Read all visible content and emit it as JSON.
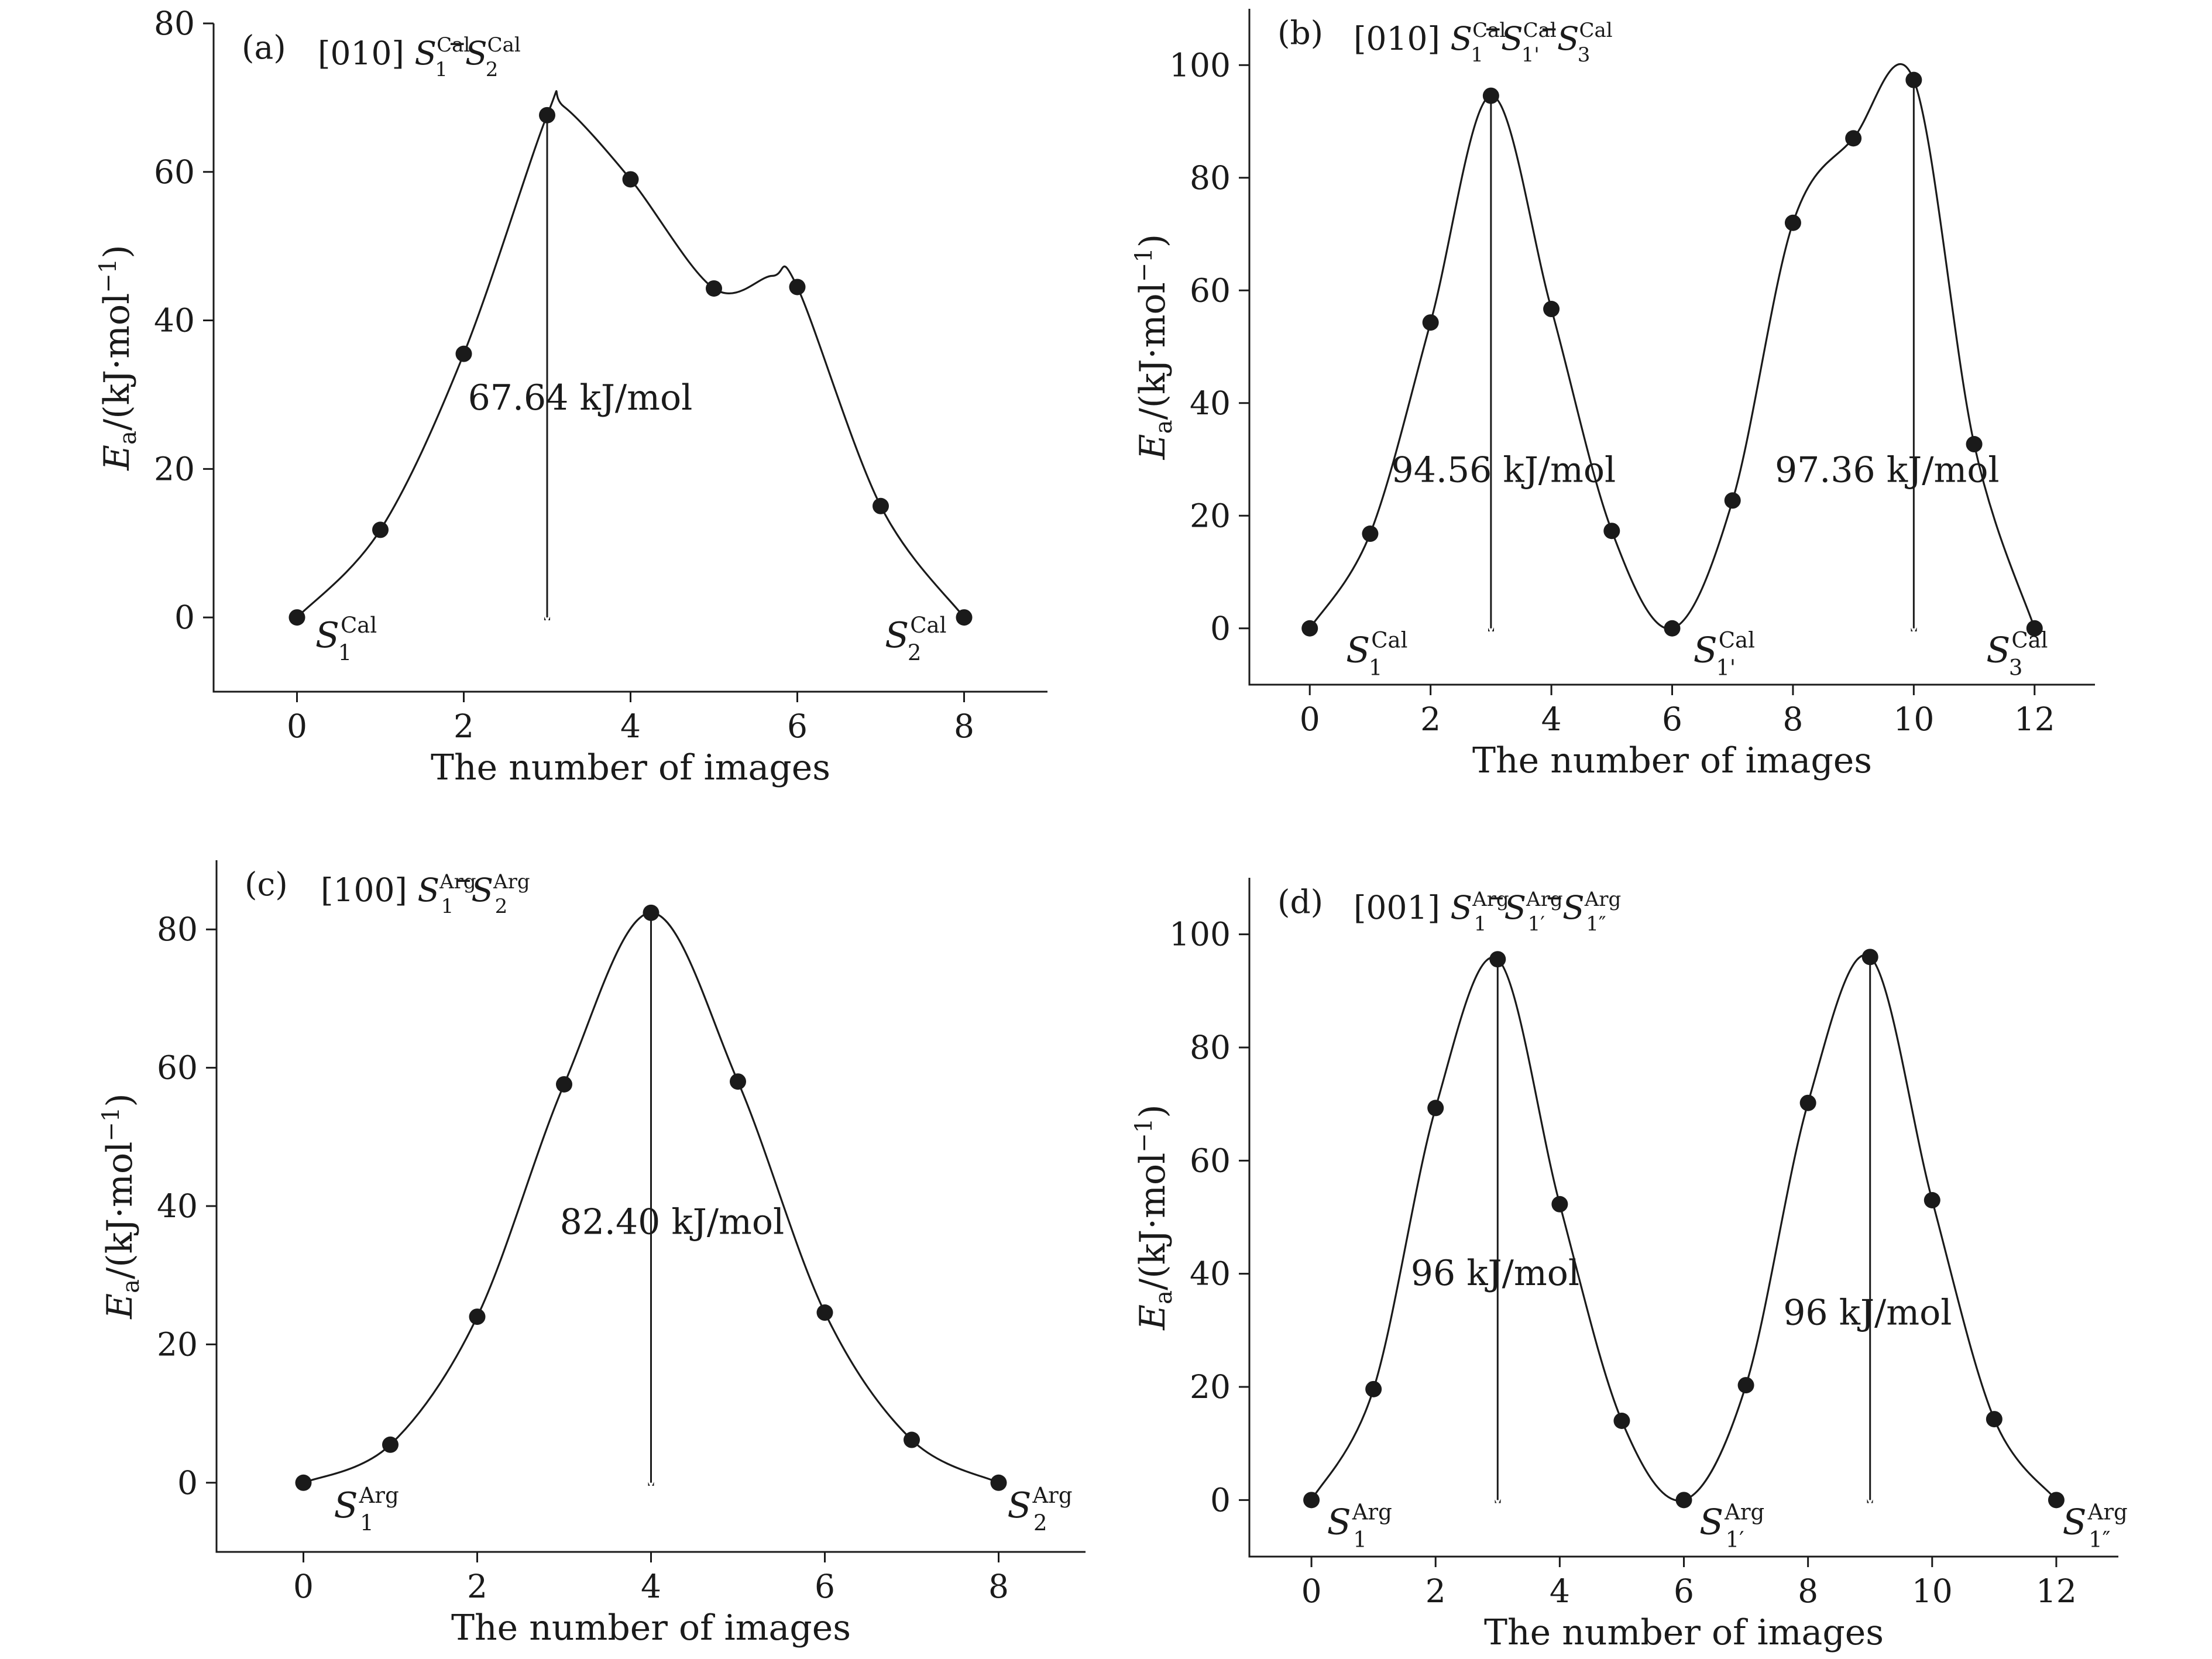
{
  "figure": {
    "panels": [
      {
        "id": "a",
        "panel_label": "(a)",
        "direction": "[010]",
        "path_label": [
          {
            "main": "S",
            "sup": "Cal",
            "sub": "1"
          },
          {
            "main": "S",
            "sup": "Cal",
            "sub": "2"
          }
        ],
        "xlabel": "The number of images",
        "ylabel": "E",
        "ylabel_sub": "a",
        "ylabel_unit": "/(kJ·mol",
        "ylabel_exp": "−1",
        "ylabel_close": ")"
      },
      {
        "id": "b",
        "panel_label": "(b)",
        "direction": "[010]",
        "path_label": [
          {
            "main": "S",
            "sup": "Cal",
            "sub": "1"
          },
          {
            "main": "S",
            "sup": "Cal",
            "sub": "1'"
          },
          {
            "main": "S",
            "sup": "Cal",
            "sub": "3"
          }
        ],
        "xlabel": "The number of images",
        "ylabel": "E",
        "ylabel_sub": "a",
        "ylabel_unit": "/(kJ·mol",
        "ylabel_exp": "−1",
        "ylabel_close": ")"
      },
      {
        "id": "c",
        "panel_label": "(c)",
        "direction": "[100]",
        "path_label": [
          {
            "main": "S",
            "sup": "Arg",
            "sub": "1"
          },
          {
            "main": "S",
            "sup": "Arg",
            "sub": "2"
          }
        ],
        "xlabel": "The number of images",
        "ylabel": "E",
        "ylabel_sub": "a",
        "ylabel_unit": "/(kJ·mol",
        "ylabel_exp": "−1",
        "ylabel_close": ")"
      },
      {
        "id": "d",
        "panel_label": "(d)",
        "direction": "[001]",
        "path_label": [
          {
            "main": "S",
            "sup": "Arg",
            "sub": "1"
          },
          {
            "main": "S",
            "sup": "Arg",
            "sub": "1′"
          },
          {
            "main": "S",
            "sup": "Arg",
            "sub": "1″"
          }
        ],
        "xlabel": "The number of images",
        "ylabel": "E",
        "ylabel_sub": "a",
        "ylabel_unit": "/(kJ·mol",
        "ylabel_exp": "−1",
        "ylabel_close": ")"
      }
    ]
  },
  "chart_data": [
    {
      "type": "line",
      "panel": "a",
      "title": "",
      "xlabel": "The number of images",
      "ylabel": "Ea/(kJ·mol−1)",
      "xlim": [
        -1,
        9
      ],
      "ylim": [
        -10,
        80
      ],
      "xticks": [
        0,
        2,
        4,
        6,
        8
      ],
      "yticks": [
        0,
        20,
        40,
        60,
        80
      ],
      "series": [
        {
          "x": [
            0,
            1,
            2,
            3,
            4,
            5,
            6,
            7,
            8
          ],
          "y": [
            0,
            11.8,
            35.5,
            67.64,
            59,
            44.3,
            44.5,
            15,
            0
          ]
        }
      ],
      "curve_guides": [
        [
          0,
          0
        ],
        [
          1,
          11.8
        ],
        [
          2,
          35.5
        ],
        [
          3,
          67.64
        ],
        [
          3.2,
          68.8
        ],
        [
          4,
          59
        ],
        [
          5,
          44.3
        ],
        [
          5.7,
          46
        ],
        [
          6,
          44.5
        ],
        [
          7,
          15
        ],
        [
          8,
          0
        ]
      ],
      "barriers": [
        {
          "x": 3,
          "y_top": 67.64,
          "label": "67.64 kJ/mol",
          "label_x": 2.05,
          "label_y": 28
        }
      ],
      "endpoint_labels": [
        {
          "main": "S",
          "sup": "Cal",
          "sub": "1",
          "x": 0.22,
          "y": -4
        },
        {
          "main": "S",
          "sup": "Cal",
          "sub": "2",
          "x": 7.05,
          "y": -4
        }
      ]
    },
    {
      "type": "line",
      "panel": "b",
      "title": "",
      "xlabel": "The number of images",
      "ylabel": "Ea/(kJ·mol−1)",
      "xlim": [
        -1,
        13
      ],
      "ylim": [
        -10,
        110
      ],
      "xticks": [
        0,
        2,
        4,
        6,
        8,
        10,
        12
      ],
      "yticks": [
        0,
        20,
        40,
        60,
        80,
        100
      ],
      "series": [
        {
          "x": [
            0,
            1,
            2,
            3,
            4,
            5,
            6,
            7,
            8,
            9,
            10,
            11,
            12
          ],
          "y": [
            0,
            16.8,
            54.3,
            94.56,
            56.7,
            17.3,
            0,
            22.7,
            72,
            87,
            97.36,
            32.7,
            0
          ]
        }
      ],
      "barriers": [
        {
          "x": 3,
          "y_top": 94.56,
          "label": "94.56 kJ/mol",
          "label_x": 1.35,
          "label_y": 26
        },
        {
          "x": 10,
          "y_top": 97.36,
          "label": "97.36 kJ/mol",
          "label_x": 7.7,
          "label_y": 26
        }
      ],
      "endpoint_labels": [
        {
          "main": "S",
          "sup": "Cal",
          "sub": "1",
          "x": 0.6,
          "y": -6
        },
        {
          "main": "S",
          "sup": "Cal",
          "sub": "1'",
          "x": 6.35,
          "y": -6
        },
        {
          "main": "S",
          "sup": "Cal",
          "sub": "3",
          "x": 11.2,
          "y": -6
        }
      ]
    },
    {
      "type": "line",
      "panel": "c",
      "title": "",
      "xlabel": "The number of images",
      "ylabel": "Ea/(kJ·mol−1)",
      "xlim": [
        -1,
        9
      ],
      "ylim": [
        -10,
        90
      ],
      "xticks": [
        0,
        2,
        4,
        6,
        8
      ],
      "yticks": [
        0,
        20,
        40,
        60,
        80
      ],
      "series": [
        {
          "x": [
            0,
            1,
            2,
            3,
            4,
            5,
            6,
            7,
            8
          ],
          "y": [
            0,
            5.5,
            24,
            57.6,
            82.4,
            58,
            24.6,
            6.2,
            0
          ]
        }
      ],
      "barriers": [
        {
          "x": 4,
          "y_top": 82.4,
          "label": "82.40 kJ/mol",
          "label_x": 2.95,
          "label_y": 36
        }
      ],
      "endpoint_labels": [
        {
          "main": "S",
          "sup": "Arg",
          "sub": "1",
          "x": 0.35,
          "y": -5
        },
        {
          "main": "S",
          "sup": "Arg",
          "sub": "2",
          "x": 8.1,
          "y": -5
        }
      ]
    },
    {
      "type": "line",
      "panel": "d",
      "title": "",
      "xlabel": "The number of images",
      "ylabel": "Ea/(kJ·mol−1)",
      "xlim": [
        -1,
        13
      ],
      "ylim": [
        -10,
        110
      ],
      "xticks": [
        0,
        2,
        4,
        6,
        8,
        10,
        12
      ],
      "yticks": [
        0,
        20,
        40,
        60,
        80,
        100
      ],
      "series": [
        {
          "x": [
            0,
            1,
            2,
            3,
            4,
            5,
            6,
            7,
            8,
            9,
            10,
            11,
            12
          ],
          "y": [
            0,
            19.6,
            69.3,
            95.6,
            52.3,
            14,
            0,
            20.3,
            70.2,
            96,
            53,
            14.3,
            0
          ]
        }
      ],
      "barriers": [
        {
          "x": 3,
          "y_top": 95.6,
          "label": "96 kJ/mol",
          "label_x": 1.6,
          "label_y": 38
        },
        {
          "x": 9,
          "y_top": 96,
          "label": "96 kJ/mol",
          "label_x": 7.6,
          "label_y": 31
        }
      ],
      "endpoint_labels": [
        {
          "main": "S",
          "sup": "Arg",
          "sub": "1",
          "x": 0.25,
          "y": -6
        },
        {
          "main": "S",
          "sup": "Arg",
          "sub": "1′",
          "x": 6.25,
          "y": -6
        },
        {
          "main": "S",
          "sup": "Arg",
          "sub": "1″",
          "x": 12.1,
          "y": -6
        }
      ]
    }
  ]
}
